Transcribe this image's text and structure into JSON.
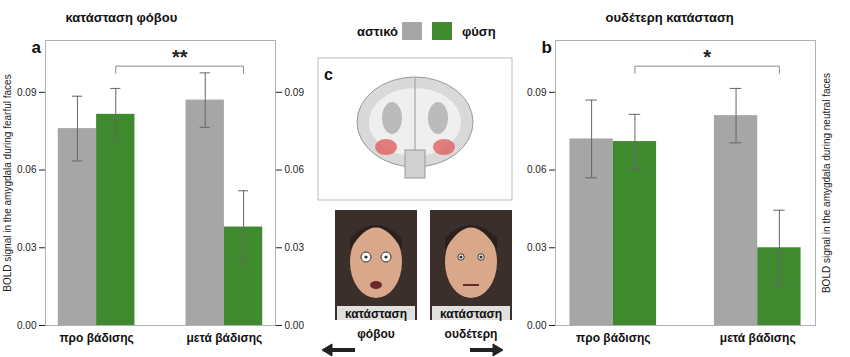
{
  "chart_data": [
    {
      "type": "bar",
      "panel": "a",
      "title": "κατάσταση φόβου",
      "ylabel": "BOLD signal in the amygdala during fearful faces",
      "annotation": "**",
      "categories": [
        "προ βάδισης",
        "μετά βάδισης"
      ],
      "series": [
        {
          "name": "αστικό",
          "color": "#a6a6a6",
          "values": [
            0.076,
            0.087
          ],
          "errors": [
            0.0125,
            0.0105
          ]
        },
        {
          "name": "φύση",
          "color": "#3f8a2e",
          "values": [
            0.0815,
            0.038
          ],
          "errors": [
            0.01,
            0.014
          ]
        }
      ],
      "ylim": [
        0,
        0.11
      ],
      "yticks": [
        {
          "value": 0,
          "label": "0.00"
        },
        {
          "value": 0.03,
          "label": "0.03"
        },
        {
          "value": 0.06,
          "label": "0.06"
        },
        {
          "value": 0.09,
          "label": "0.09"
        }
      ]
    },
    {
      "type": "bar",
      "panel": "b",
      "title": "ουδέτερη κατάσταση",
      "ylabel": "BOLD signal in the amygdala during neutral faces",
      "annotation": "*",
      "categories": [
        "προ βάδισης",
        "μετά βάδισης"
      ],
      "series": [
        {
          "name": "αστικό",
          "color": "#a6a6a6",
          "values": [
            0.072,
            0.081
          ],
          "errors": [
            0.015,
            0.0105
          ]
        },
        {
          "name": "φύση",
          "color": "#3f8a2e",
          "values": [
            0.071,
            0.03
          ],
          "errors": [
            0.0105,
            0.0145
          ]
        }
      ],
      "ylim": [
        0,
        0.11
      ],
      "yticks": [
        {
          "value": 0,
          "label": "0.00"
        },
        {
          "value": 0.03,
          "label": "0.03"
        },
        {
          "value": 0.06,
          "label": "0.06"
        },
        {
          "value": 0.09,
          "label": "0.09"
        }
      ]
    }
  ],
  "panel_c": {
    "label": "c",
    "images": [
      "κατάσταση φόβου",
      "κατάσταση ουδέτερη"
    ]
  }
}
